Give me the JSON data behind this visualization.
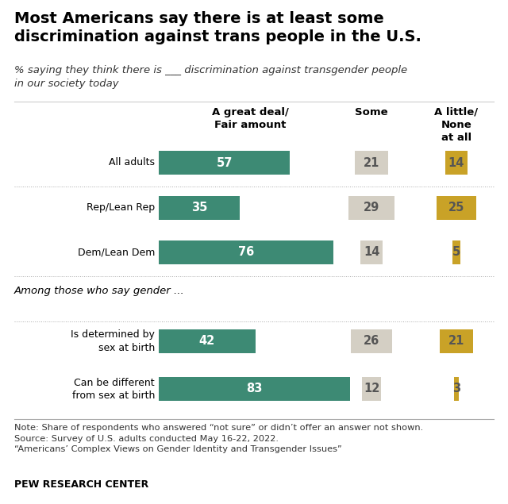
{
  "title": "Most Americans say there is at least some\ndiscrimination against trans people in the U.S.",
  "subtitle": "% saying they think there is ___ discrimination against transgender people\nin our society today",
  "categories": [
    "All adults",
    "Rep/Lean Rep",
    "Dem/Lean Dem",
    "Is determined by\nsex at birth",
    "Can be different\nfrom sex at birth"
  ],
  "great_deal": [
    57,
    35,
    76,
    42,
    83
  ],
  "some": [
    21,
    29,
    14,
    26,
    12
  ],
  "little_none": [
    14,
    25,
    5,
    21,
    3
  ],
  "color_great": "#3d8a74",
  "color_some": "#d4cfc4",
  "color_little": "#c9a227",
  "section_label": "Among those who say gender ...",
  "col_headers": [
    "A great deal/\nFair amount",
    "Some",
    "A little/\nNone\nat all"
  ],
  "note": "Note: Share of respondents who answered “not sure” or didn’t offer an answer not shown.\nSource: Survey of U.S. adults conducted May 16-22, 2022.\n“Americans’ Complex Views on Gender Identity and Transgender Issues”",
  "footer": "PEW RESEARCH CENTER",
  "bg_color": "#ffffff",
  "title_fontsize": 14,
  "subtitle_fontsize": 9.5,
  "bar_label_fontsize": 10.5,
  "cat_label_fontsize": 9,
  "header_fontsize": 9.5,
  "note_fontsize": 8.2,
  "footer_fontsize": 9
}
